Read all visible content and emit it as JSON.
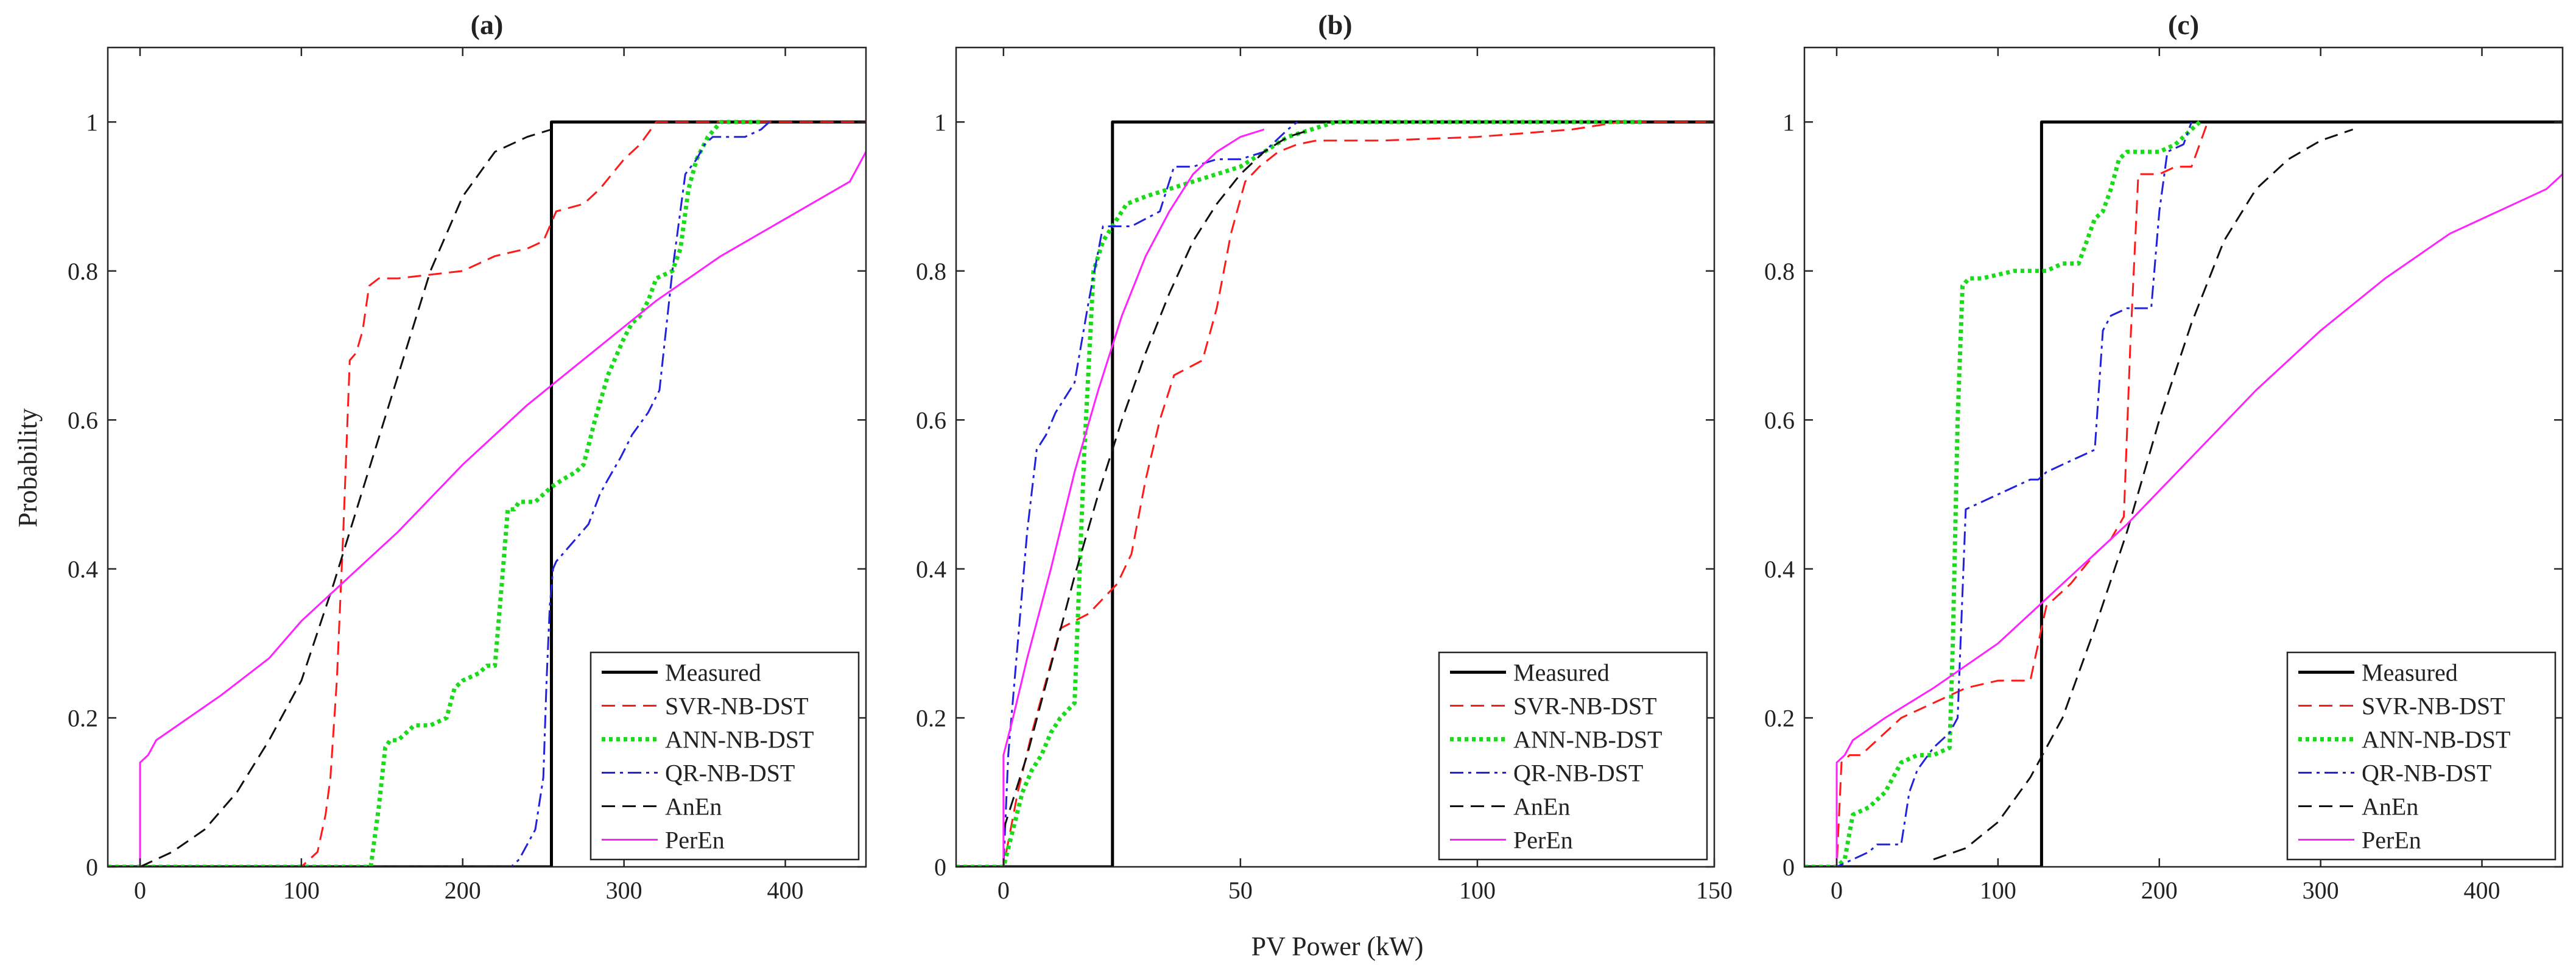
{
  "figure": {
    "xlabel": "PV Power (kW)",
    "ylabel": "Probability"
  },
  "styles": {
    "Measured": {
      "color": "#000000",
      "dash": "",
      "width": 5
    },
    "SVR-NB-DST": {
      "color": "#ff1a1a",
      "dash": "22 12",
      "width": 3
    },
    "ANN-NB-DST": {
      "color": "#1adb1a",
      "dash": "6 6",
      "width": 7
    },
    "QR-NB-DST": {
      "color": "#2222dd",
      "dash": "22 8 5 8",
      "width": 3
    },
    "AnEn": {
      "color": "#111111",
      "dash": "22 12",
      "width": 3
    },
    "PerEn": {
      "color": "#ff22ff",
      "dash": "",
      "width": 3
    }
  },
  "chart_data": [
    {
      "type": "line",
      "title": "(a)",
      "xlabel": "",
      "ylabel": "Probability",
      "xlim": [
        -20,
        450
      ],
      "ylim": [
        0,
        1.1
      ],
      "xticks": [
        0,
        100,
        200,
        300,
        400
      ],
      "yticks": [
        0,
        0.2,
        0.4,
        0.6,
        0.8,
        1
      ],
      "ytick_labels": [
        "0",
        "0.2",
        "0.4",
        "0.6",
        "0.8",
        "1"
      ],
      "legend": "bottom-right",
      "series": [
        {
          "name": "Measured",
          "x": [
            -20,
            255,
            255,
            450
          ],
          "y": [
            0,
            0,
            1,
            1
          ]
        },
        {
          "name": "SVR-NB-DST",
          "x": [
            -20,
            100,
            110,
            115,
            118,
            122,
            126,
            130,
            134,
            138,
            142,
            148,
            160,
            200,
            220,
            240,
            250,
            258,
            275,
            285,
            300,
            310,
            320,
            450
          ],
          "y": [
            0,
            0,
            0.02,
            0.07,
            0.12,
            0.25,
            0.45,
            0.68,
            0.69,
            0.72,
            0.78,
            0.79,
            0.79,
            0.8,
            0.82,
            0.83,
            0.84,
            0.88,
            0.89,
            0.91,
            0.95,
            0.97,
            1.0,
            1.0
          ]
        },
        {
          "name": "ANN-NB-DST",
          "x": [
            -20,
            143,
            148,
            152,
            155,
            160,
            165,
            170,
            180,
            190,
            195,
            200,
            210,
            215,
            220,
            225,
            228,
            232,
            235,
            240,
            245,
            250,
            255,
            262,
            270,
            275,
            282,
            290,
            300,
            305,
            310,
            315,
            320,
            330,
            335,
            340,
            345,
            352,
            360,
            372,
            385
          ],
          "y": [
            0,
            0,
            0.08,
            0.16,
            0.17,
            0.17,
            0.18,
            0.19,
            0.19,
            0.2,
            0.24,
            0.25,
            0.26,
            0.27,
            0.27,
            0.4,
            0.48,
            0.48,
            0.49,
            0.49,
            0.49,
            0.5,
            0.51,
            0.52,
            0.53,
            0.54,
            0.6,
            0.66,
            0.71,
            0.73,
            0.74,
            0.76,
            0.79,
            0.8,
            0.83,
            0.91,
            0.95,
            0.98,
            1.0,
            1.0,
            1.0
          ]
        },
        {
          "name": "QR-NB-DST",
          "x": [
            -20,
            230,
            235,
            240,
            245,
            250,
            252,
            254,
            256,
            258,
            262,
            270,
            278,
            285,
            290,
            298,
            305,
            315,
            322,
            330,
            338,
            345,
            350,
            355,
            365,
            375,
            385,
            390
          ],
          "y": [
            0,
            0,
            0.01,
            0.03,
            0.05,
            0.12,
            0.25,
            0.35,
            0.4,
            0.41,
            0.42,
            0.44,
            0.46,
            0.5,
            0.52,
            0.55,
            0.58,
            0.61,
            0.64,
            0.8,
            0.93,
            0.95,
            0.97,
            0.98,
            0.98,
            0.98,
            0.99,
            1.0
          ]
        },
        {
          "name": "AnEn",
          "x": [
            0,
            20,
            40,
            60,
            80,
            100,
            120,
            140,
            160,
            180,
            200,
            220,
            240,
            255
          ],
          "y": [
            0,
            0.02,
            0.05,
            0.1,
            0.17,
            0.25,
            0.38,
            0.52,
            0.66,
            0.8,
            0.9,
            0.96,
            0.98,
            0.99
          ]
        },
        {
          "name": "PerEn",
          "x": [
            0,
            0,
            5,
            10,
            30,
            50,
            80,
            100,
            130,
            160,
            200,
            240,
            280,
            320,
            360,
            400,
            440,
            450
          ],
          "y": [
            0,
            0.14,
            0.15,
            0.17,
            0.2,
            0.23,
            0.28,
            0.33,
            0.39,
            0.45,
            0.54,
            0.62,
            0.69,
            0.76,
            0.82,
            0.87,
            0.92,
            0.96
          ]
        }
      ]
    },
    {
      "type": "line",
      "title": "(b)",
      "xlabel": "PV Power (kW)",
      "ylabel": "",
      "xlim": [
        -10,
        150
      ],
      "ylim": [
        0,
        1.1
      ],
      "xticks": [
        0,
        50,
        100,
        150
      ],
      "yticks": [
        0,
        0.2,
        0.4,
        0.6,
        0.8,
        1
      ],
      "ytick_labels": [
        "0",
        "0.2",
        "0.4",
        "0.6",
        "0.8",
        "1"
      ],
      "legend": "bottom-right",
      "series": [
        {
          "name": "Measured",
          "x": [
            -10,
            23,
            23,
            150
          ],
          "y": [
            0,
            0,
            1,
            1
          ]
        },
        {
          "name": "SVR-NB-DST",
          "x": [
            -10,
            0,
            3,
            6,
            9,
            12,
            15,
            18,
            21,
            24,
            27,
            30,
            33,
            36,
            39,
            42,
            45,
            48,
            51,
            54,
            58,
            62,
            66,
            70,
            80,
            100,
            110,
            120,
            130,
            140,
            150
          ],
          "y": [
            0,
            0,
            0.1,
            0.18,
            0.25,
            0.32,
            0.33,
            0.34,
            0.36,
            0.38,
            0.42,
            0.52,
            0.6,
            0.66,
            0.67,
            0.68,
            0.75,
            0.85,
            0.92,
            0.94,
            0.96,
            0.97,
            0.975,
            0.975,
            0.975,
            0.98,
            0.985,
            0.99,
            1.0,
            1.0,
            1.0
          ]
        },
        {
          "name": "ANN-NB-DST",
          "x": [
            -10,
            0,
            2,
            4,
            6,
            8,
            10,
            12,
            15,
            17,
            19,
            21,
            23,
            26,
            30,
            35,
            40,
            45,
            50,
            55,
            60,
            65,
            70,
            80,
            90,
            100,
            120,
            135
          ],
          "y": [
            0,
            0,
            0.05,
            0.1,
            0.13,
            0.15,
            0.18,
            0.2,
            0.22,
            0.55,
            0.8,
            0.84,
            0.86,
            0.89,
            0.9,
            0.91,
            0.92,
            0.93,
            0.94,
            0.96,
            0.98,
            0.99,
            1.0,
            1.0,
            1.0,
            1.0,
            1.0,
            1.0
          ]
        },
        {
          "name": "QR-NB-DST",
          "x": [
            -10,
            0,
            1,
            3,
            5,
            7,
            9,
            11,
            13,
            15,
            18,
            21,
            24,
            27,
            30,
            33,
            36,
            40,
            45,
            50,
            55,
            60,
            62
          ],
          "y": [
            0,
            0,
            0.15,
            0.3,
            0.45,
            0.56,
            0.58,
            0.61,
            0.63,
            0.65,
            0.76,
            0.86,
            0.86,
            0.86,
            0.87,
            0.88,
            0.94,
            0.94,
            0.95,
            0.95,
            0.96,
            0.99,
            1.0
          ]
        },
        {
          "name": "AnEn",
          "x": [
            0,
            5,
            10,
            15,
            20,
            25,
            30,
            35,
            40,
            45,
            50,
            55,
            60,
            65
          ],
          "y": [
            0.05,
            0.15,
            0.27,
            0.39,
            0.5,
            0.6,
            0.69,
            0.77,
            0.84,
            0.89,
            0.93,
            0.96,
            0.98,
            0.99
          ]
        },
        {
          "name": "PerEn",
          "x": [
            0,
            0,
            2,
            5,
            10,
            15,
            20,
            25,
            30,
            35,
            40,
            45,
            50,
            55
          ],
          "y": [
            0,
            0.15,
            0.2,
            0.28,
            0.4,
            0.53,
            0.64,
            0.74,
            0.82,
            0.88,
            0.93,
            0.96,
            0.98,
            0.99
          ]
        }
      ]
    },
    {
      "type": "line",
      "title": "(c)",
      "xlabel": "",
      "ylabel": "",
      "xlim": [
        -20,
        450
      ],
      "ylim": [
        0,
        1.1
      ],
      "xticks": [
        0,
        100,
        200,
        300,
        400
      ],
      "yticks": [
        0,
        0.2,
        0.4,
        0.6,
        0.8,
        1
      ],
      "ytick_labels": [
        "0",
        "0.2",
        "0.4",
        "0.6",
        "0.8",
        "1"
      ],
      "legend": "bottom-right",
      "series": [
        {
          "name": "Measured",
          "x": [
            -20,
            127,
            127,
            450
          ],
          "y": [
            0,
            0,
            1,
            1
          ]
        },
        {
          "name": "SVR-NB-DST",
          "x": [
            -20,
            0,
            3,
            8,
            15,
            25,
            40,
            60,
            80,
            100,
            120,
            125,
            128,
            130,
            135,
            145,
            160,
            170,
            178,
            182,
            187,
            192,
            200,
            210,
            220,
            225,
            230
          ],
          "y": [
            0,
            0,
            0.14,
            0.15,
            0.15,
            0.17,
            0.2,
            0.22,
            0.24,
            0.25,
            0.25,
            0.3,
            0.33,
            0.35,
            0.36,
            0.38,
            0.42,
            0.44,
            0.47,
            0.7,
            0.93,
            0.93,
            0.93,
            0.94,
            0.94,
            0.97,
            1.0
          ]
        },
        {
          "name": "ANN-NB-DST",
          "x": [
            -20,
            0,
            5,
            10,
            20,
            30,
            40,
            50,
            60,
            70,
            72,
            75,
            78,
            82,
            90,
            100,
            110,
            120,
            130,
            140,
            150,
            155,
            160,
            165,
            170,
            175,
            180,
            195,
            200,
            210,
            220,
            225
          ],
          "y": [
            0,
            0,
            0.01,
            0.07,
            0.08,
            0.1,
            0.14,
            0.15,
            0.15,
            0.16,
            0.3,
            0.6,
            0.78,
            0.79,
            0.79,
            0.795,
            0.8,
            0.8,
            0.8,
            0.81,
            0.81,
            0.84,
            0.87,
            0.88,
            0.91,
            0.95,
            0.96,
            0.96,
            0.96,
            0.97,
            0.99,
            1.0
          ]
        },
        {
          "name": "QR-NB-DST",
          "x": [
            -20,
            0,
            10,
            20,
            25,
            30,
            40,
            45,
            50,
            60,
            70,
            75,
            80,
            90,
            100,
            110,
            120,
            125,
            130,
            140,
            150,
            160,
            165,
            170,
            180,
            195,
            200,
            205,
            215,
            220
          ],
          "y": [
            0,
            0,
            0.01,
            0.02,
            0.03,
            0.03,
            0.03,
            0.1,
            0.13,
            0.16,
            0.18,
            0.2,
            0.48,
            0.49,
            0.5,
            0.51,
            0.52,
            0.52,
            0.53,
            0.54,
            0.55,
            0.56,
            0.72,
            0.74,
            0.75,
            0.75,
            0.88,
            0.96,
            0.97,
            1.0
          ]
        },
        {
          "name": "AnEn",
          "x": [
            60,
            80,
            100,
            120,
            140,
            160,
            180,
            200,
            220,
            240,
            260,
            280,
            300,
            320
          ],
          "y": [
            0.01,
            0.025,
            0.06,
            0.12,
            0.2,
            0.32,
            0.45,
            0.6,
            0.73,
            0.84,
            0.91,
            0.95,
            0.975,
            0.99
          ]
        },
        {
          "name": "PerEn",
          "x": [
            0,
            0,
            5,
            10,
            30,
            60,
            100,
            140,
            180,
            220,
            260,
            300,
            340,
            380,
            420,
            440,
            450
          ],
          "y": [
            0,
            0.14,
            0.15,
            0.17,
            0.2,
            0.24,
            0.3,
            0.38,
            0.46,
            0.55,
            0.64,
            0.72,
            0.79,
            0.85,
            0.89,
            0.91,
            0.93
          ]
        }
      ]
    }
  ]
}
